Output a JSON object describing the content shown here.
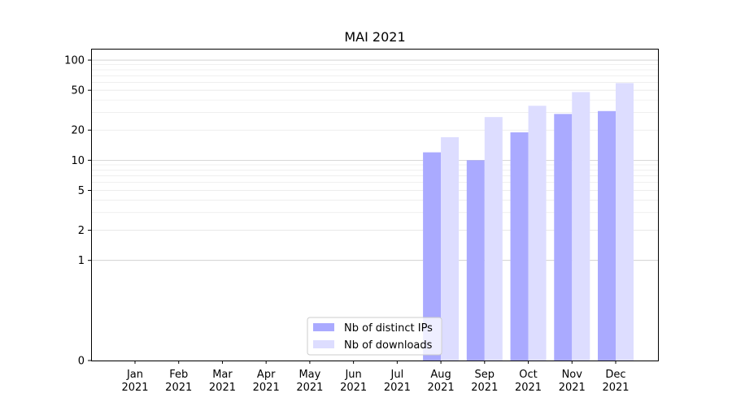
{
  "chart_data": {
    "type": "bar",
    "title": "MAI 2021",
    "xlabel": "",
    "ylabel": "",
    "yscale": "symlog",
    "ylim": [
      0,
      130
    ],
    "yticks": [
      0,
      1,
      2,
      5,
      10,
      20,
      50,
      100
    ],
    "grid": true,
    "legend_position": "lower-center",
    "categories": [
      [
        "Jan",
        "2021"
      ],
      [
        "Feb",
        "2021"
      ],
      [
        "Mar",
        "2021"
      ],
      [
        "Apr",
        "2021"
      ],
      [
        "May",
        "2021"
      ],
      [
        "Jun",
        "2021"
      ],
      [
        "Jul",
        "2021"
      ],
      [
        "Aug",
        "2021"
      ],
      [
        "Sep",
        "2021"
      ],
      [
        "Oct",
        "2021"
      ],
      [
        "Nov",
        "2021"
      ],
      [
        "Dec",
        "2021"
      ]
    ],
    "series": [
      {
        "name": "Nb of distinct IPs",
        "color": "#aaaaff",
        "values": [
          0,
          0,
          0,
          0,
          0,
          0,
          0,
          12,
          10,
          19,
          29,
          31
        ]
      },
      {
        "name": "Nb of downloads",
        "color": "#ddddff",
        "values": [
          0,
          0,
          0,
          0,
          0,
          0,
          0,
          17,
          27,
          35,
          48,
          59
        ]
      }
    ]
  }
}
